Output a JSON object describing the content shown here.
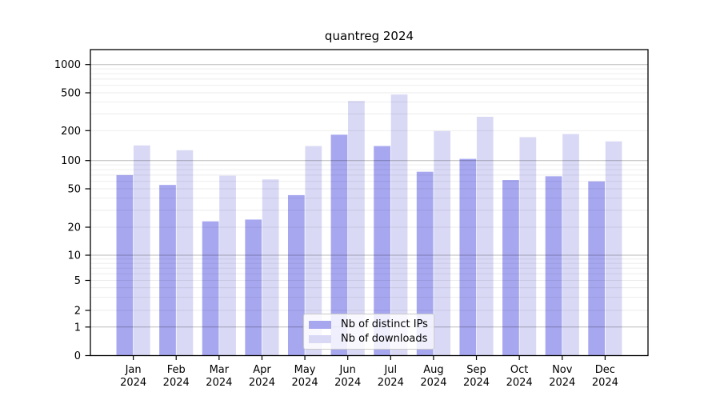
{
  "figure": {
    "background": "#ffffff",
    "axis_color": "#000000",
    "major_grid_color": "rgba(0,0,0,0.27)",
    "minor_grid_color": "rgba(0,0,0,0.08)",
    "text_color": "#000000"
  },
  "chart_data": {
    "type": "bar",
    "title": "quantreg 2024",
    "categories": [
      "Jan 2024",
      "Feb 2024",
      "Mar 2024",
      "Apr 2024",
      "May 2024",
      "Jun 2024",
      "Jul 2024",
      "Aug 2024",
      "Sep 2024",
      "Oct 2024",
      "Nov 2024",
      "Dec 2024"
    ],
    "series": [
      {
        "name": "Nb of distinct IPs",
        "color": "#a7a7f0",
        "values": [
          70,
          55,
          23,
          24,
          43,
          182,
          140,
          76,
          104,
          62,
          68,
          60
        ]
      },
      {
        "name": "Nb of downloads",
        "color": "#d9d9f6",
        "values": [
          142,
          127,
          69,
          63,
          140,
          410,
          480,
          198,
          280,
          172,
          185,
          156
        ]
      }
    ],
    "xlabel": "",
    "ylabel": "",
    "yscale": "log above 1 (compressed below 10), linear segment 0-1",
    "ytick_labels": [
      "1000",
      "500",
      "200",
      "100",
      "50",
      "20",
      "10",
      "5",
      "2",
      "1",
      "0"
    ],
    "ytick_values": [
      1000,
      500,
      200,
      100,
      50,
      20,
      10,
      5,
      2,
      1,
      0
    ],
    "ylim": [
      0,
      1400
    ],
    "grid": "major + log minor, drawn over bars",
    "legend_position": "inside plot, lower center-left"
  }
}
